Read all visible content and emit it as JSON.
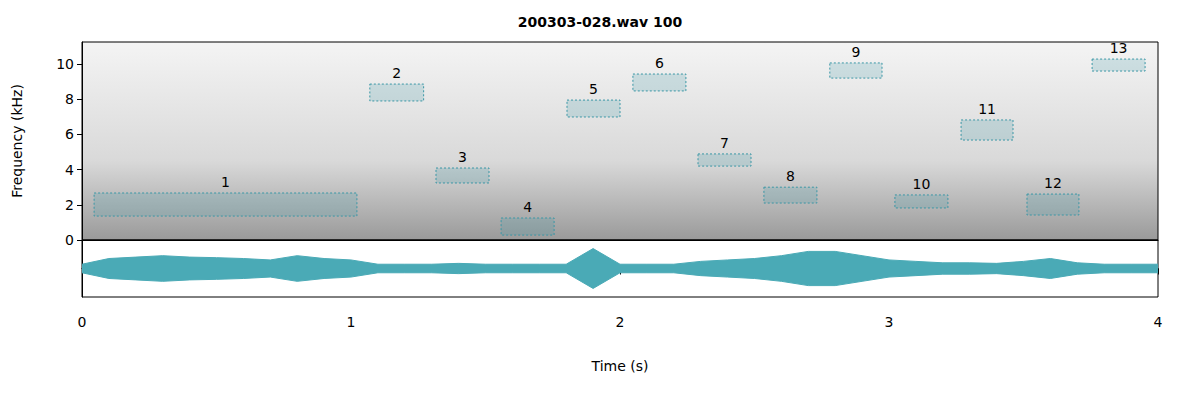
{
  "chart_data": {
    "type": "spectrogram",
    "title": "200303-028.wav 100",
    "x_label": "Time (s)",
    "y_label": "Frequency (kHz)",
    "xlim": [
      0,
      4
    ],
    "xticks": [
      0,
      1,
      2,
      3,
      4
    ],
    "ylim": [
      0,
      11.25
    ],
    "yticks": [
      0,
      2,
      4,
      6,
      8,
      10
    ],
    "boxes": {
      "color": "#3a97a6",
      "items": [
        {
          "label": "1",
          "t": [
            0.045,
            1.022
          ],
          "f": [
            1.36,
            2.67
          ]
        },
        {
          "label": "2",
          "t": [
            1.07,
            1.27
          ],
          "f": [
            7.9,
            8.86
          ]
        },
        {
          "label": "3",
          "t": [
            1.316,
            1.513
          ],
          "f": [
            3.24,
            4.09
          ]
        },
        {
          "label": "4",
          "t": [
            1.558,
            1.755
          ],
          "f": [
            0.28,
            1.25
          ]
        },
        {
          "label": "5",
          "t": [
            1.803,
            2.0
          ],
          "f": [
            6.99,
            7.95
          ]
        },
        {
          "label": "6",
          "t": [
            2.048,
            2.245
          ],
          "f": [
            8.47,
            9.43
          ]
        },
        {
          "label": "7",
          "t": [
            2.29,
            2.487
          ],
          "f": [
            4.2,
            4.89
          ]
        },
        {
          "label": "8",
          "t": [
            2.535,
            2.732
          ],
          "f": [
            2.1,
            3.0
          ]
        },
        {
          "label": "9",
          "t": [
            2.78,
            2.974
          ],
          "f": [
            9.2,
            10.06
          ]
        },
        {
          "label": "10",
          "t": [
            3.022,
            3.219
          ],
          "f": [
            1.82,
            2.56
          ]
        },
        {
          "label": "11",
          "t": [
            3.268,
            3.461
          ],
          "f": [
            5.68,
            6.82
          ]
        },
        {
          "label": "12",
          "t": [
            3.513,
            3.706
          ],
          "f": [
            1.42,
            2.61
          ]
        },
        {
          "label": "13",
          "t": [
            3.755,
            3.952
          ],
          "f": [
            9.6,
            10.28
          ]
        }
      ]
    },
    "waveform": {
      "color": "#4aaab6",
      "ylim": [
        -1,
        1
      ],
      "t": [
        0,
        0.1,
        0.2,
        0.3,
        0.4,
        0.5,
        0.6,
        0.7,
        0.8,
        0.9,
        1.0,
        1.1,
        1.2,
        1.3,
        1.4,
        1.5,
        1.6,
        1.7,
        1.8,
        1.9,
        2.0,
        2.1,
        2.2,
        2.3,
        2.4,
        2.5,
        2.6,
        2.7,
        2.8,
        2.9,
        3.0,
        3.1,
        3.2,
        3.3,
        3.4,
        3.5,
        3.6,
        3.7,
        3.8,
        3.9,
        4.0
      ],
      "amplitude": [
        0.15,
        0.35,
        0.4,
        0.45,
        0.4,
        0.38,
        0.35,
        0.3,
        0.45,
        0.35,
        0.3,
        0.15,
        0.15,
        0.15,
        0.18,
        0.15,
        0.15,
        0.15,
        0.15,
        0.7,
        0.15,
        0.15,
        0.15,
        0.25,
        0.3,
        0.35,
        0.45,
        0.6,
        0.6,
        0.45,
        0.3,
        0.25,
        0.2,
        0.2,
        0.18,
        0.25,
        0.35,
        0.2,
        0.15,
        0.15,
        0.15
      ]
    }
  }
}
